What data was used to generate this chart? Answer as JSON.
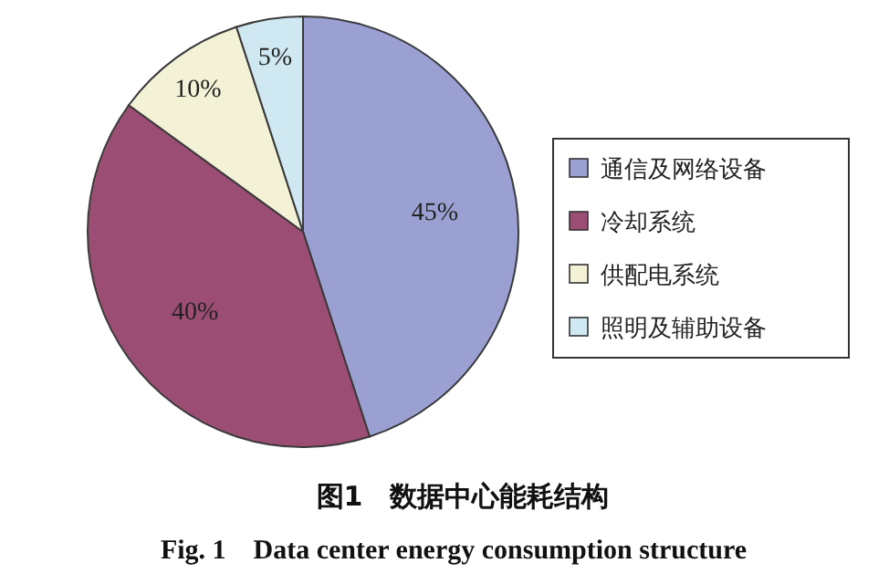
{
  "chart_data": {
    "type": "pie",
    "title": "图1　数据中心能耗结构",
    "subtitle": "Fig. 1　Data center energy consumption structure",
    "categories": [
      "通信及网络设备",
      "冷却系统",
      "供配电系统",
      "照明及辅助设备"
    ],
    "values": [
      45,
      40,
      10,
      5
    ],
    "value_labels": [
      "45%",
      "40%",
      "10%",
      "5%"
    ],
    "colors": [
      "#9aa0d2",
      "#9c4d73",
      "#f3f1d6",
      "#cfe8f1"
    ],
    "legend": "right"
  }
}
